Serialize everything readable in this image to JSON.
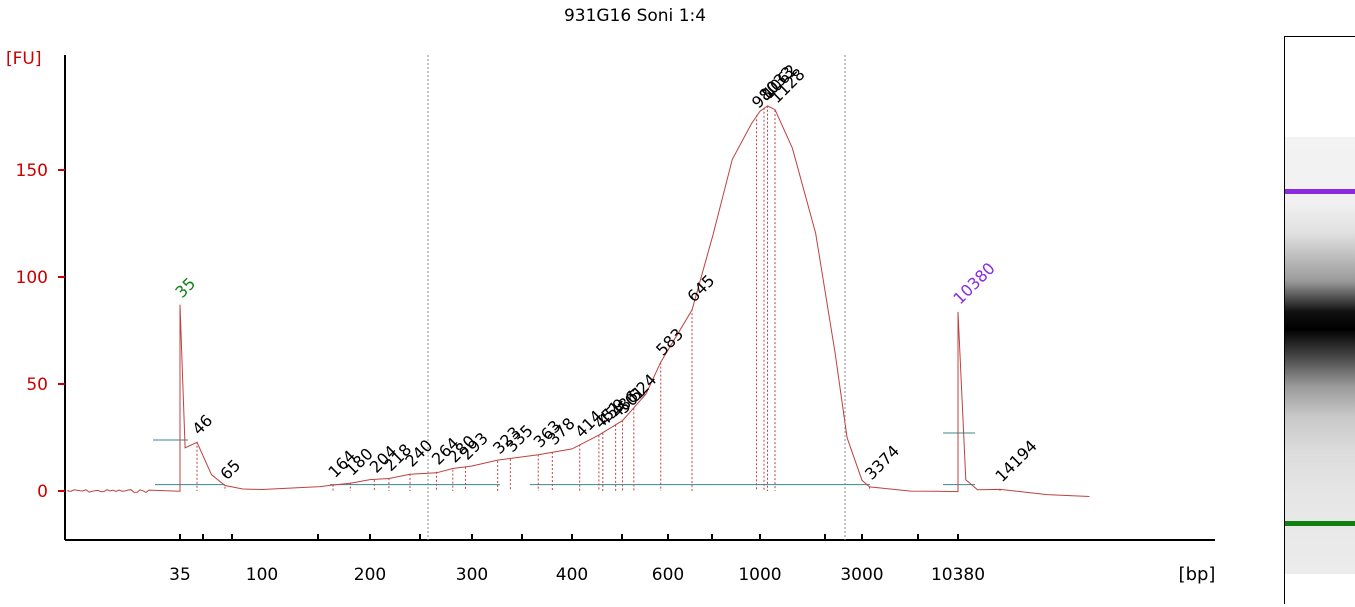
{
  "title": "931G16 Soni 1:4",
  "chart_data": {
    "type": "line",
    "title": "931G16 Soni 1:4",
    "ylabel": "[FU]",
    "xlabel": "[bp]",
    "ylim": [
      -20,
      180
    ],
    "yticks": [
      0,
      50,
      100,
      150
    ],
    "xtick_labels": [
      "35",
      "100",
      "200",
      "300",
      "400",
      "600",
      "1000",
      "3000",
      "10380"
    ],
    "lower_marker": {
      "label": "35",
      "color": "#108010"
    },
    "upper_marker": {
      "label": "10380",
      "color": "#8a2be2"
    },
    "peak_labels": [
      "35",
      "46",
      "65",
      "164",
      "180",
      "204",
      "218",
      "240",
      "264",
      "280",
      "293",
      "323",
      "335",
      "363",
      "378",
      "414",
      "451",
      "459",
      "486",
      "501",
      "524",
      "583",
      "645",
      "980",
      "1033",
      "1062",
      "1128",
      "3374",
      "10380",
      "14194"
    ],
    "series": [
      {
        "points": [
          [
            35,
            0
          ],
          [
            35,
            87
          ],
          [
            38,
            20
          ],
          [
            46,
            23
          ],
          [
            55,
            8
          ],
          [
            65,
            2
          ],
          [
            80,
            1
          ],
          [
            100,
            1
          ],
          [
            150,
            2
          ],
          [
            164,
            3
          ],
          [
            180,
            4
          ],
          [
            200,
            5
          ],
          [
            218,
            6
          ],
          [
            240,
            8
          ],
          [
            264,
            9
          ],
          [
            280,
            10
          ],
          [
            300,
            12
          ],
          [
            323,
            14
          ],
          [
            363,
            17
          ],
          [
            400,
            20
          ],
          [
            451,
            26
          ],
          [
            501,
            33
          ],
          [
            550,
            45
          ],
          [
            583,
            60
          ],
          [
            645,
            85
          ],
          [
            750,
            120
          ],
          [
            850,
            155
          ],
          [
            950,
            172
          ],
          [
            1000,
            178
          ],
          [
            1062,
            180
          ],
          [
            1128,
            178
          ],
          [
            1300,
            160
          ],
          [
            1600,
            120
          ],
          [
            2000,
            65
          ],
          [
            2400,
            25
          ],
          [
            3000,
            5
          ],
          [
            3374,
            2
          ],
          [
            4000,
            1
          ],
          [
            6000,
            0
          ],
          [
            8000,
            0
          ],
          [
            10380,
            0
          ],
          [
            10380,
            84
          ],
          [
            11000,
            5
          ],
          [
            12000,
            1
          ],
          [
            14194,
            1
          ],
          [
            17000,
            -2
          ],
          [
            20000,
            -3
          ]
        ]
      }
    ]
  },
  "colors": {
    "axis": "#cc0000",
    "trace": "#c04040",
    "baseline": "#3a8a8a",
    "marker_upper": "#8a2be2",
    "marker_lower": "#108010"
  },
  "gel": {
    "label": "gel-image"
  }
}
